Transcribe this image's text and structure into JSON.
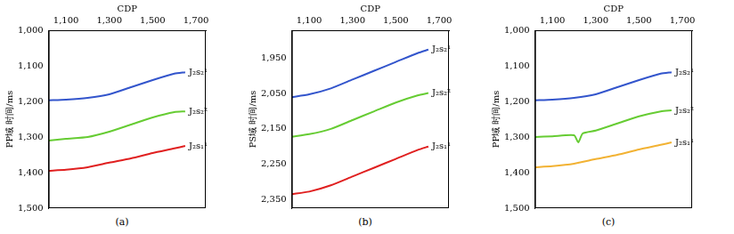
{
  "chart_data": [
    {
      "type": "line",
      "label": "(a)",
      "x_label": "CDP",
      "y_label": "PP域 时间/ms",
      "xlim": [
        1020,
        1745
      ],
      "xticks": [
        1100,
        1300,
        1500,
        1700
      ],
      "ylim": [
        1000,
        1500
      ],
      "yticks": [
        1000,
        1100,
        1200,
        1300,
        1400,
        1500
      ],
      "grid": false,
      "tick_labels": true,
      "series": [
        {
          "name": "J₂s₂¹",
          "color": "#3355cc",
          "x": [
            1020,
            1100,
            1200,
            1300,
            1400,
            1500,
            1600,
            1650
          ],
          "values": [
            1197,
            1195,
            1190,
            1180,
            1160,
            1140,
            1122,
            1118
          ]
        },
        {
          "name": "J₂s₂²",
          "color": "#66cc33",
          "x": [
            1020,
            1100,
            1200,
            1300,
            1400,
            1500,
            1600,
            1650
          ],
          "values": [
            1310,
            1305,
            1300,
            1285,
            1265,
            1245,
            1230,
            1228
          ]
        },
        {
          "name": "J₂s₁¹",
          "color": "#e02020",
          "x": [
            1020,
            1100,
            1200,
            1300,
            1400,
            1500,
            1600,
            1650
          ],
          "values": [
            1395,
            1392,
            1385,
            1372,
            1360,
            1345,
            1332,
            1325
          ]
        }
      ]
    },
    {
      "type": "line",
      "label": "(b)",
      "x_label": "CDP",
      "y_label": "PS域 时间/ms",
      "xlim": [
        1020,
        1745
      ],
      "xticks": [
        1100,
        1300,
        1500,
        1700
      ],
      "ylim": [
        1870,
        2375
      ],
      "yticks": [
        1950,
        2050,
        2150,
        2250,
        2350
      ],
      "grid": false,
      "tick_labels": true,
      "series": [
        {
          "name": "J₂s₂¹",
          "color": "#3355cc",
          "x": [
            1020,
            1100,
            1200,
            1300,
            1400,
            1500,
            1600,
            1650
          ],
          "values": [
            2060,
            2052,
            2035,
            2010,
            1985,
            1960,
            1935,
            1925
          ]
        },
        {
          "name": "J₂s₂²",
          "color": "#66cc33",
          "x": [
            1020,
            1100,
            1200,
            1300,
            1400,
            1500,
            1600,
            1650
          ],
          "values": [
            2172,
            2165,
            2150,
            2125,
            2100,
            2075,
            2055,
            2048
          ]
        },
        {
          "name": "J₂s₁¹",
          "color": "#e02020",
          "x": [
            1020,
            1100,
            1200,
            1300,
            1400,
            1500,
            1600,
            1650
          ],
          "values": [
            2335,
            2328,
            2310,
            2285,
            2260,
            2235,
            2210,
            2200
          ]
        }
      ]
    },
    {
      "type": "line",
      "label": "(c)",
      "x_label": "CDP",
      "y_label": "PP域 时间/ms",
      "xlim": [
        1020,
        1745
      ],
      "xticks": [
        1100,
        1300,
        1500,
        1700
      ],
      "ylim": [
        1000,
        1500
      ],
      "yticks": [
        1000,
        1100,
        1200,
        1300,
        1400,
        1500
      ],
      "grid": false,
      "tick_labels": true,
      "series": [
        {
          "name": "J₂s₂¹",
          "color": "#3355cc",
          "x": [
            1020,
            1100,
            1200,
            1300,
            1400,
            1500,
            1600,
            1650
          ],
          "values": [
            1197,
            1195,
            1190,
            1180,
            1160,
            1140,
            1122,
            1118
          ]
        },
        {
          "name": "J₂s₂²",
          "color": "#66cc33",
          "x": [
            1020,
            1100,
            1200,
            1220,
            1240,
            1300,
            1400,
            1500,
            1600,
            1650
          ],
          "values": [
            1300,
            1298,
            1295,
            1315,
            1290,
            1282,
            1262,
            1242,
            1228,
            1225
          ]
        },
        {
          "name": "J₂s₁¹",
          "color": "#f2b233",
          "x": [
            1020,
            1100,
            1200,
            1300,
            1400,
            1500,
            1600,
            1650
          ],
          "values": [
            1385,
            1382,
            1375,
            1362,
            1350,
            1335,
            1322,
            1315
          ]
        }
      ]
    }
  ]
}
